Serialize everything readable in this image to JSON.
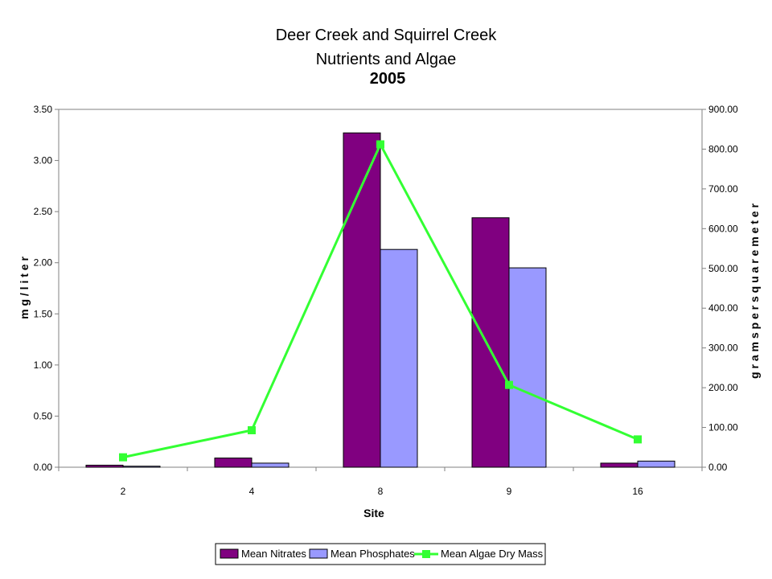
{
  "chart_data": {
    "type": "bar",
    "title_line1": "Deer Creek and Squirrel Creek",
    "title_line2": "Nutrients and Algae",
    "title_year": "2005",
    "xlabel": "Site",
    "ylabel": "m g / l i t e r",
    "y2label": "g r a m s   p e r   s q u a r e   m e t e r",
    "categories": [
      "2",
      "4",
      "8",
      "9",
      "16"
    ],
    "ylim": [
      0,
      3.5
    ],
    "y_ticks": [
      "0.00",
      "0.50",
      "1.00",
      "1.50",
      "2.00",
      "2.50",
      "3.00",
      "3.50"
    ],
    "y2lim": [
      0,
      900
    ],
    "y2_ticks": [
      "0.00",
      "100.00",
      "200.00",
      "300.00",
      "400.00",
      "500.00",
      "600.00",
      "700.00",
      "800.00",
      "900.00"
    ],
    "grid": false,
    "legend_position": "bottom",
    "series": [
      {
        "name": "Mean Nitrates",
        "type": "bar",
        "axis": "left",
        "color": "#800080",
        "values": [
          0.02,
          0.09,
          3.27,
          2.44,
          0.04
        ]
      },
      {
        "name": "Mean Phosphates",
        "type": "bar",
        "axis": "left",
        "color": "#9999ff",
        "values": [
          0.01,
          0.04,
          2.13,
          1.95,
          0.06
        ]
      },
      {
        "name": "Mean Algae Dry Mass",
        "type": "line",
        "axis": "right",
        "color": "#33ff33",
        "values": [
          25,
          93,
          812,
          207,
          70
        ]
      }
    ]
  }
}
